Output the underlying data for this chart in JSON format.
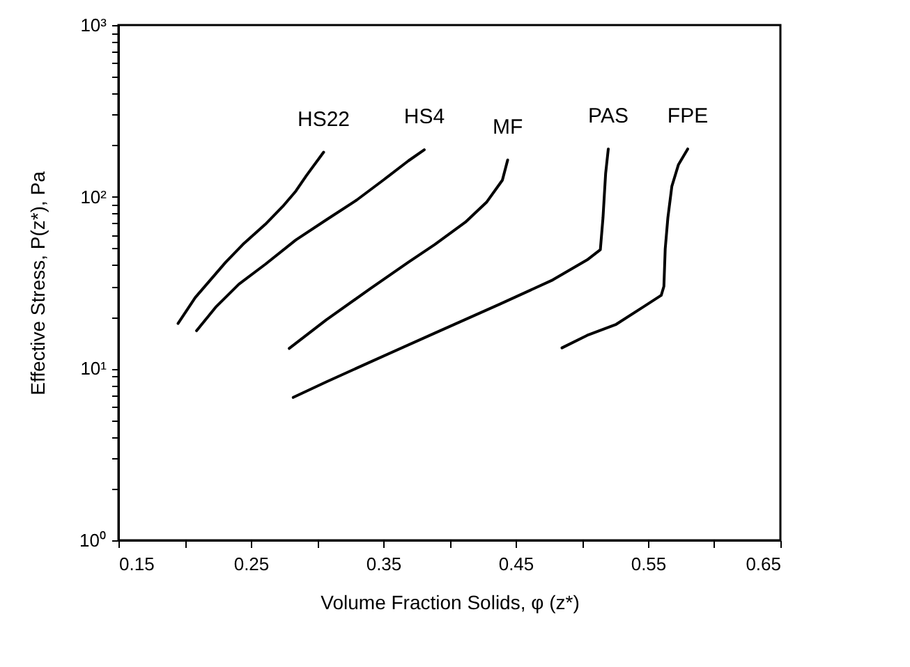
{
  "chart_data": {
    "type": "line",
    "xlabel": "Volume Fraction Solids,  φ (z*)",
    "ylabel": "Effective Stress, P(z*), Pa",
    "log": "y",
    "grid": false,
    "legend": false,
    "marker": "none",
    "line_style": "solid",
    "xlim": [
      0.15,
      0.65
    ],
    "ylim": [
      1,
      1000
    ],
    "xticks": [
      0.15,
      {
        "value": 0.2,
        "label": null
      },
      0.25,
      {
        "value": 0.3,
        "label": null
      },
      0.35,
      {
        "value": 0.4,
        "label": null
      },
      0.45,
      {
        "value": 0.5,
        "label": null
      },
      0.55,
      {
        "value": 0.6,
        "label": null
      },
      0.65
    ],
    "yticks": [
      {
        "value": 1,
        "label": "10⁰"
      },
      {
        "value": 2,
        "label": null
      },
      {
        "value": 3,
        "label": null
      },
      {
        "value": 4,
        "label": null
      },
      {
        "value": 5,
        "label": null
      },
      {
        "value": 6,
        "label": null
      },
      {
        "value": 7,
        "label": null
      },
      {
        "value": 8,
        "label": null
      },
      {
        "value": 9,
        "label": null
      },
      {
        "value": 10,
        "label": "10¹"
      },
      {
        "value": 20,
        "label": null
      },
      {
        "value": 30,
        "label": null
      },
      {
        "value": 40,
        "label": null
      },
      {
        "value": 50,
        "label": null
      },
      {
        "value": 60,
        "label": null
      },
      {
        "value": 70,
        "label": null
      },
      {
        "value": 80,
        "label": null
      },
      {
        "value": 90,
        "label": null
      },
      {
        "value": 100,
        "label": "10²"
      },
      {
        "value": 200,
        "label": null
      },
      {
        "value": 300,
        "label": null
      },
      {
        "value": 400,
        "label": null
      },
      {
        "value": 500,
        "label": null
      },
      {
        "value": 600,
        "label": null
      },
      {
        "value": 700,
        "label": null
      },
      {
        "value": 800,
        "label": null
      },
      {
        "value": 900,
        "label": null
      },
      {
        "value": 1000,
        "label": "10³"
      }
    ],
    "series": [
      {
        "name": "HS22",
        "color": "#000000",
        "x": [
          0.195,
          0.208,
          0.231,
          0.244,
          0.261,
          0.274,
          0.284,
          0.292,
          0.305
        ],
        "values": [
          18.3,
          25.9,
          41.6,
          52.8,
          69.2,
          87.7,
          108,
          133,
          182
        ]
      },
      {
        "name": "HS4",
        "color": "#000000",
        "x": [
          0.209,
          0.224,
          0.241,
          0.261,
          0.284,
          0.307,
          0.33,
          0.35,
          0.369,
          0.381
        ],
        "values": [
          16.6,
          23.0,
          31.0,
          40.5,
          56.1,
          73.4,
          95.8,
          125,
          162,
          188
        ]
      },
      {
        "name": "MF",
        "color": "#000000",
        "x": [
          0.279,
          0.307,
          0.34,
          0.369,
          0.389,
          0.412,
          0.428,
          0.44,
          0.444
        ],
        "values": [
          13.1,
          19.2,
          29.1,
          41.6,
          52.8,
          71.1,
          92.9,
          125,
          164
        ]
      },
      {
        "name": "PAS",
        "color": "#000000",
        "x": [
          0.282,
          0.307,
          0.34,
          0.389,
          0.438,
          0.478,
          0.504,
          0.514,
          0.516,
          0.517,
          0.518,
          0.52
        ],
        "values": [
          6.79,
          8.36,
          10.9,
          16.1,
          23.7,
          32.8,
          42.9,
          49.2,
          75.5,
          102,
          137,
          190
        ]
      },
      {
        "name": "FPE",
        "color": "#000000",
        "x": [
          0.485,
          0.504,
          0.526,
          0.547,
          0.56,
          0.562,
          0.563,
          0.565,
          0.568,
          0.573,
          0.58
        ],
        "values": [
          13.2,
          15.6,
          18.1,
          23.0,
          26.7,
          30.1,
          49.8,
          75.5,
          115,
          154,
          190
        ]
      }
    ]
  }
}
